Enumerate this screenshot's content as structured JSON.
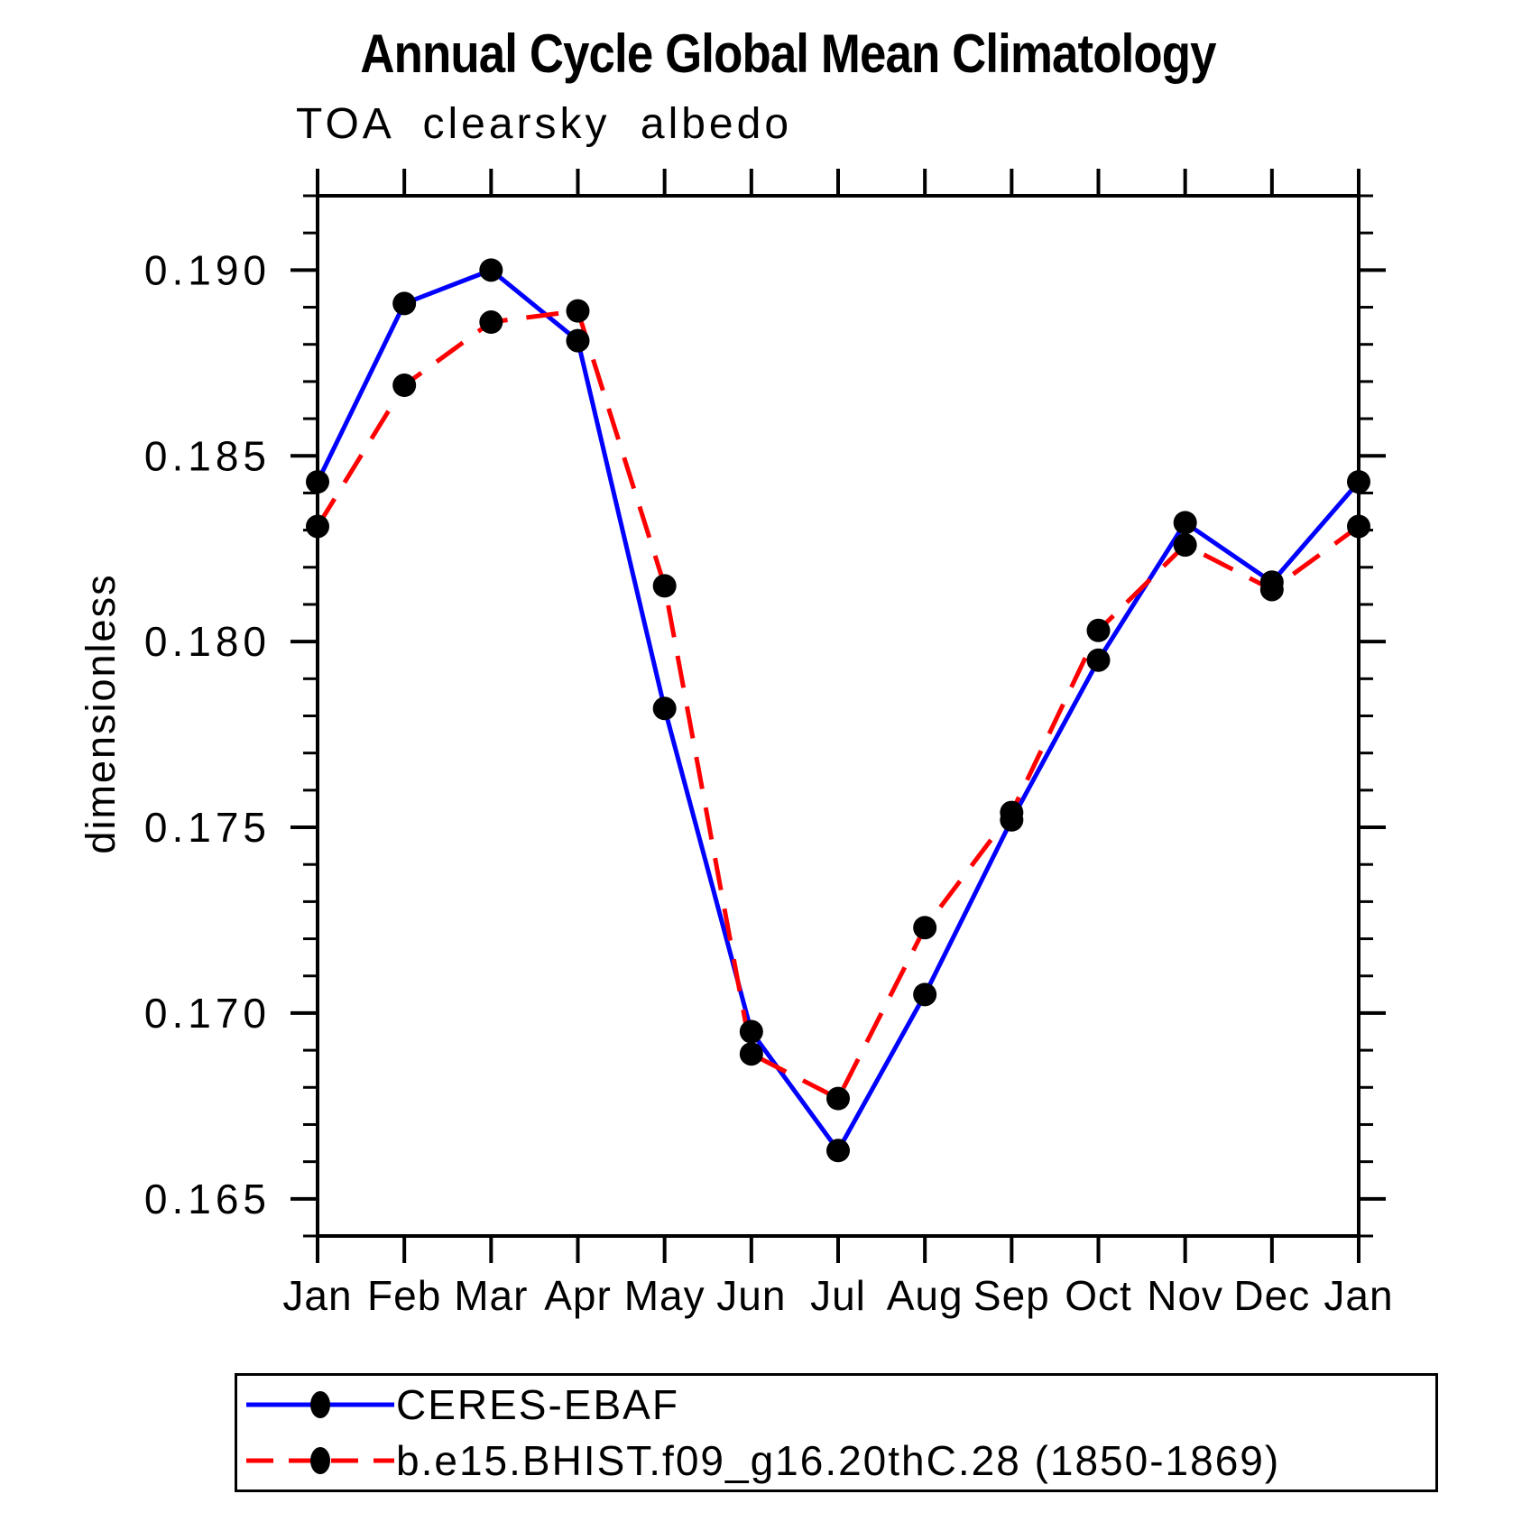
{
  "chart_data": {
    "type": "line",
    "title": "Annual Cycle Global Mean Climatology",
    "subtitle": "TOA clearsky albedo",
    "ylabel": "dimensionless",
    "xlabel": "",
    "categories": [
      "Jan",
      "Feb",
      "Mar",
      "Apr",
      "May",
      "Jun",
      "Jul",
      "Aug",
      "Sep",
      "Oct",
      "Nov",
      "Dec",
      "Jan"
    ],
    "ylim": [
      0.164,
      0.192
    ],
    "yticks": [
      {
        "value": 0.165,
        "label": "0.165"
      },
      {
        "value": 0.17,
        "label": "0.170"
      },
      {
        "value": 0.175,
        "label": "0.175"
      },
      {
        "value": 0.18,
        "label": "0.180"
      },
      {
        "value": 0.185,
        "label": "0.185"
      },
      {
        "value": 0.19,
        "label": "0.190"
      }
    ],
    "yminor_step": 0.001,
    "grid": false,
    "legend_position": "bottom-left-box",
    "marker": "filled-circle",
    "marker_color": "#000000",
    "axis_color": "#000000",
    "series": [
      {
        "name": "CERES-EBAF",
        "color": "#0000ff",
        "style": "solid",
        "values": [
          0.1843,
          0.1891,
          0.19,
          0.1881,
          0.1782,
          0.1695,
          0.1663,
          0.1705,
          0.1752,
          0.1795,
          0.1832,
          0.1816,
          0.1843
        ]
      },
      {
        "name": "b.e15.BHIST.f09_g16.20thC.28 (1850-1869)",
        "color": "#ff0000",
        "style": "dashed",
        "values": [
          0.1831,
          0.1869,
          0.1886,
          0.1889,
          0.1815,
          0.1689,
          0.1677,
          0.1723,
          0.1754,
          0.1803,
          0.1826,
          0.1814,
          0.1831
        ]
      }
    ]
  }
}
